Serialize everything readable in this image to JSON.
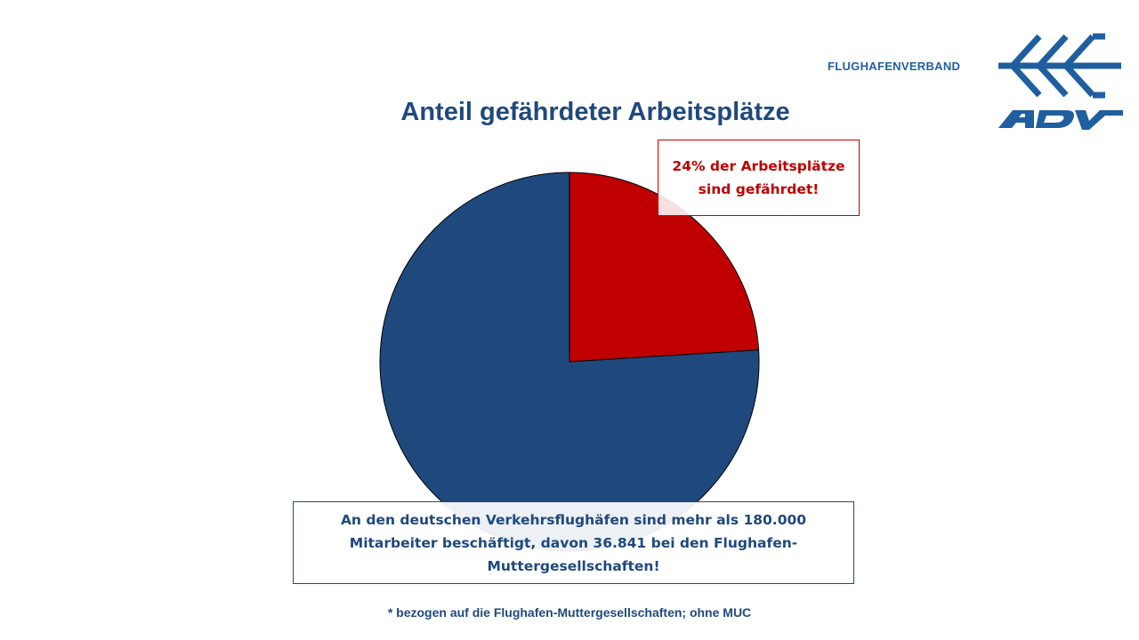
{
  "brand": {
    "name": "FLUGHAFENVERBAND",
    "logo_text": "ADV"
  },
  "colors": {
    "navy": "#1f497d",
    "red": "#c00000",
    "brand_blue": "#1f5fa0"
  },
  "chart_data": {
    "type": "pie",
    "title": "Anteil gefährdeter Arbeitsplätze",
    "slices": [
      {
        "name": "",
        "value": 24,
        "color": "#c00000"
      },
      {
        "name": "",
        "value": 76,
        "color": "#1f497d"
      }
    ],
    "start_angle_deg": 0,
    "direction": "clockwise",
    "legend": "none"
  },
  "callouts": {
    "red": "24% der Arbeitsplätze sind gefährdet!",
    "blue": "An den deutschen Verkehrsflughäfen sind mehr als 180.000 Mitarbeiter beschäftigt, davon 36.841 bei den Flughafen-Muttergesellschaften!"
  },
  "footnote": "* bezogen auf die Flughafen-Muttergesellschaften; ohne MUC"
}
